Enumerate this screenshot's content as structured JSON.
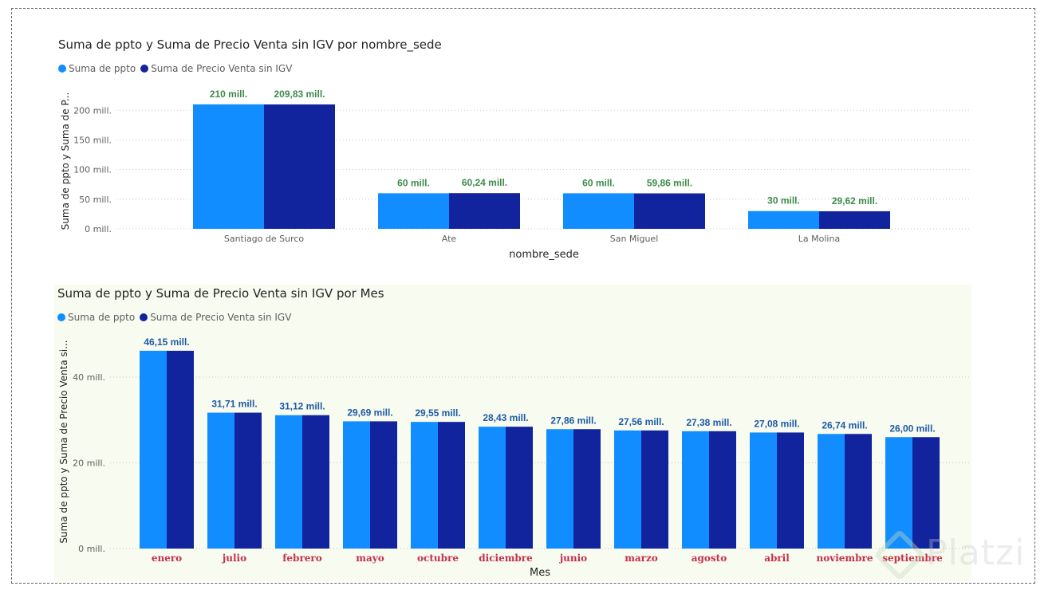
{
  "colors": {
    "ppto": "#118dff",
    "precio": "#12239e",
    "label_top": "#3d8b4a",
    "label_bottom": "#1f5aa6",
    "month_tick": "#c4314b"
  },
  "watermark": "Platzi",
  "chart_data": [
    {
      "type": "bar",
      "title": "Suma de ppto y Suma de Precio Venta sin IGV por nombre_sede",
      "xlabel": "nombre_sede",
      "ylabel": "Suma de ppto y Suma de P...",
      "ylim": [
        0,
        230
      ],
      "yticks": [
        0,
        50,
        100,
        150,
        200
      ],
      "ytick_labels": [
        "0 mill.",
        "50 mill.",
        "100 mill.",
        "150 mill.",
        "200 mill."
      ],
      "legend_position": "top-left",
      "categories": [
        "Santiago de Surco",
        "Ate",
        "San Miguel",
        "La Molina"
      ],
      "series": [
        {
          "name": "Suma de ppto",
          "values": [
            210,
            60,
            60,
            30
          ],
          "labels": [
            "210 mill.",
            "60 mill.",
            "60 mill.",
            "30 mill."
          ]
        },
        {
          "name": "Suma de Precio Venta sin IGV",
          "values": [
            209.83,
            60.24,
            59.86,
            29.62
          ],
          "labels": [
            "209,83 mill.",
            "60,24 mill.",
            "59,86 mill.",
            "29,62 mill."
          ]
        }
      ]
    },
    {
      "type": "bar",
      "title": "Suma de ppto y Suma de Precio Venta sin IGV por Mes",
      "xlabel": "Mes",
      "ylabel": "Suma de ppto y Suma de Precio Venta si...",
      "ylim": [
        0,
        48
      ],
      "yticks": [
        0,
        20,
        40
      ],
      "ytick_labels": [
        "0 mill.",
        "20 mill.",
        "40 mill."
      ],
      "legend_position": "top-left",
      "categories": [
        "enero",
        "julio",
        "febrero",
        "mayo",
        "octubre",
        "diciembre",
        "junio",
        "marzo",
        "agosto",
        "abril",
        "noviembre",
        "septiembre"
      ],
      "series": [
        {
          "name": "Suma de ppto",
          "values": [
            46.15,
            31.71,
            31.12,
            29.69,
            29.55,
            28.43,
            27.86,
            27.56,
            27.38,
            27.08,
            26.74,
            26.0
          ]
        },
        {
          "name": "Suma de Precio Venta sin IGV",
          "values": [
            46.15,
            31.71,
            31.12,
            29.69,
            29.55,
            28.43,
            27.86,
            27.56,
            27.38,
            27.08,
            26.74,
            26.0
          ]
        }
      ],
      "data_labels": [
        "46,15 mill.",
        "31,71 mill.",
        "31,12 mill.",
        "29,69 mill.",
        "29,55 mill.",
        "28,43 mill.",
        "27,86 mill.",
        "27,56 mill.",
        "27,38 mill.",
        "27,08 mill.",
        "26,74 mill.",
        "26,00 mill."
      ]
    }
  ]
}
